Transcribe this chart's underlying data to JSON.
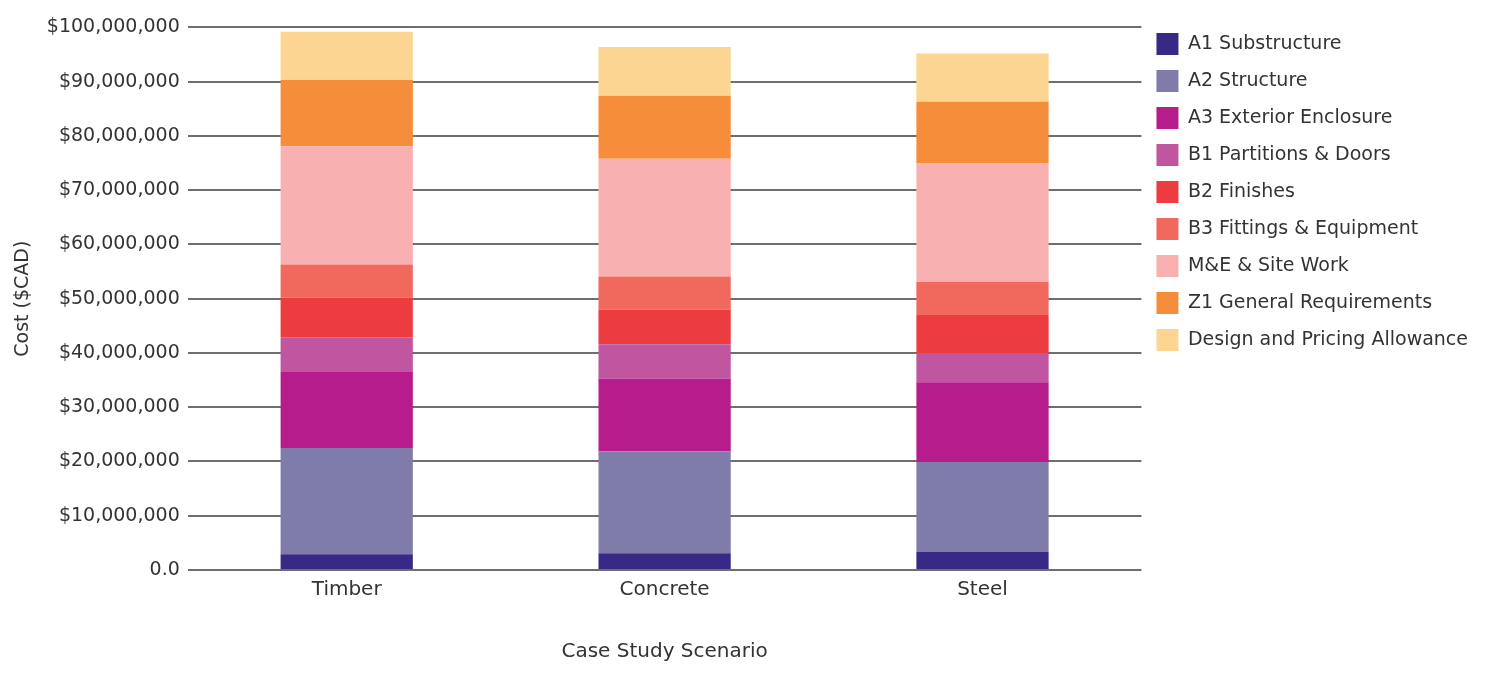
{
  "chart_data": {
    "type": "bar",
    "stacked": true,
    "xlabel": "Case Study Scenario",
    "ylabel": "Cost ($CAD)",
    "categories": [
      "Timber",
      "Concrete",
      "Steel"
    ],
    "series": [
      {
        "name": "A1 Substructure",
        "color": "#372985",
        "values": [
          2900000,
          3100000,
          3300000
        ]
      },
      {
        "name": "A2 Structure",
        "color": "#807caa",
        "values": [
          19600000,
          18800000,
          16600000
        ]
      },
      {
        "name": "A3 Exterior Enclosure",
        "color": "#b71c8c",
        "values": [
          14000000,
          13400000,
          14700000
        ]
      },
      {
        "name": "B1 Partitions & Doors",
        "color": "#c0569f",
        "values": [
          6400000,
          6300000,
          5400000
        ]
      },
      {
        "name": "B2 Finishes",
        "color": "#ec3c3f",
        "values": [
          7300000,
          6400000,
          7000000
        ]
      },
      {
        "name": "B3 Fittings & Equipment",
        "color": "#f1695d",
        "values": [
          6100000,
          6100000,
          6100000
        ]
      },
      {
        "name": "M&E & Site Work",
        "color": "#f8b1b0",
        "values": [
          21800000,
          21700000,
          21800000
        ]
      },
      {
        "name": "Z1 General Requirements",
        "color": "#f58d3b",
        "values": [
          12200000,
          11600000,
          11400000
        ]
      },
      {
        "name": "Design and Pricing Allowance",
        "color": "#fdd592",
        "values": [
          8900000,
          9000000,
          8900000
        ]
      }
    ],
    "ylim": [
      0,
      100000000
    ],
    "yticks": [
      {
        "value": 0,
        "label": "0.0"
      },
      {
        "value": 10000000,
        "label": "$10,000,000"
      },
      {
        "value": 20000000,
        "label": "$20,000,000"
      },
      {
        "value": 30000000,
        "label": "$30,000,000"
      },
      {
        "value": 40000000,
        "label": "$40,000,000"
      },
      {
        "value": 50000000,
        "label": "$50,000,000"
      },
      {
        "value": 60000000,
        "label": "$60,000,000"
      },
      {
        "value": 70000000,
        "label": "$70,000,000"
      },
      {
        "value": 80000000,
        "label": "$80,000,000"
      },
      {
        "value": 90000000,
        "label": "$90,000,000"
      },
      {
        "value": 100000000,
        "label": "$100,000,000"
      }
    ],
    "grid": "y",
    "legend": "top right"
  }
}
